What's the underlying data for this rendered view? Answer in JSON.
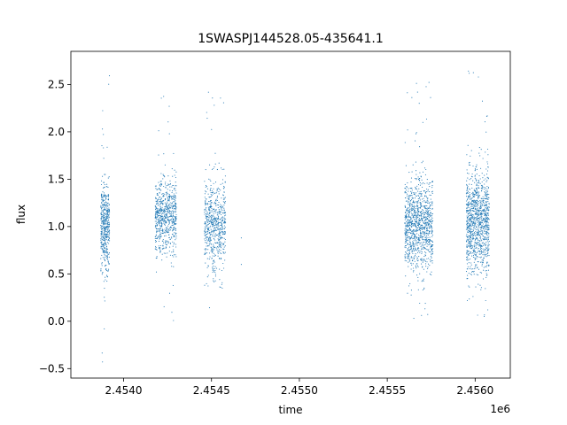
{
  "chart_data": {
    "type": "scatter",
    "title": "1SWASPJ144528.05-435641.1",
    "xlabel": "time",
    "ylabel": "flux",
    "x_offset_label": "1e6",
    "xlim": [
      2453700,
      2456200
    ],
    "ylim": [
      -0.6,
      2.85
    ],
    "x_ticks": [
      2454000,
      2454500,
      2455000,
      2455500,
      2456000
    ],
    "x_tick_labels": [
      "2.4540",
      "2.4545",
      "2.4550",
      "2.4555",
      "2.4560"
    ],
    "y_ticks": [
      -0.5,
      0.0,
      0.5,
      1.0,
      1.5,
      2.0,
      2.5
    ],
    "y_tick_labels": [
      "−0.5",
      "0.0",
      "0.5",
      "1.0",
      "1.5",
      "2.0",
      "2.5"
    ],
    "grid": false,
    "series": [
      {
        "color": "#1f77b4",
        "marker": "point",
        "clusters": [
          {
            "x_start": 2453870,
            "x_end": 2453920,
            "y_center": 1.0,
            "y_spread": 0.22,
            "y_min": -0.45,
            "y_max": 2.72,
            "count": 500
          },
          {
            "x_start": 2454180,
            "x_end": 2454300,
            "y_center": 1.1,
            "y_spread": 0.2,
            "y_min": 0.0,
            "y_max": 2.48,
            "count": 700
          },
          {
            "x_start": 2454460,
            "x_end": 2454580,
            "y_center": 1.0,
            "y_spread": 0.24,
            "y_min": 0.1,
            "y_max": 2.52,
            "count": 650
          },
          {
            "x_start": 2455600,
            "x_end": 2455760,
            "y_center": 1.0,
            "y_spread": 0.24,
            "y_min": 0.0,
            "y_max": 2.58,
            "count": 1100
          },
          {
            "x_start": 2455950,
            "x_end": 2456080,
            "y_center": 1.05,
            "y_spread": 0.26,
            "y_min": 0.02,
            "y_max": 2.65,
            "count": 1100
          }
        ],
        "outliers": [
          {
            "x": 2454670,
            "y": 0.88
          },
          {
            "x": 2454670,
            "y": 0.6
          },
          {
            "x": 2453890,
            "y": -0.08
          },
          {
            "x": 2453880,
            "y": -0.43
          }
        ]
      }
    ]
  }
}
